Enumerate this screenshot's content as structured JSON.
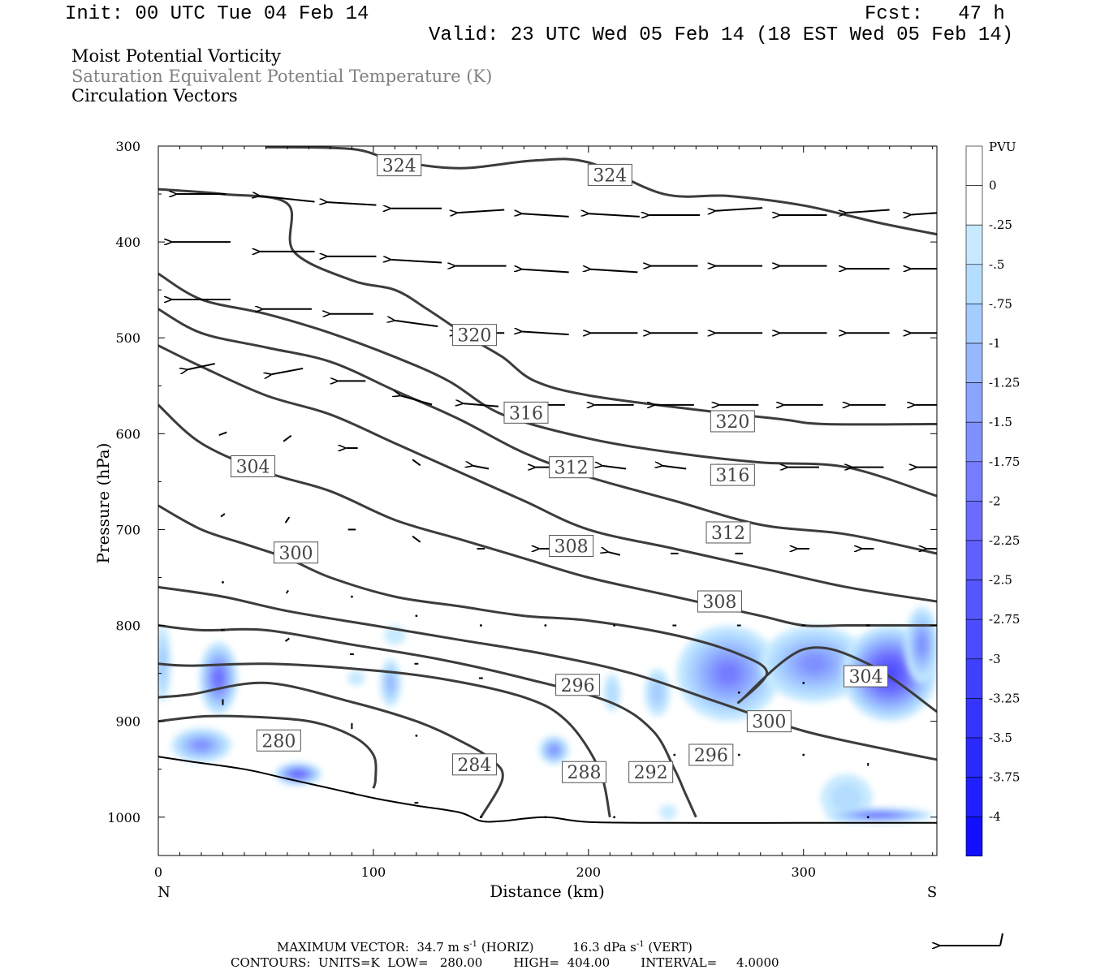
{
  "header": {
    "init": "Init: 00 UTC Tue 04 Feb 14",
    "fcst": "Fcst:   47 h",
    "valid": "Valid: 23 UTC Wed 05 Feb 14 (18 EST Wed 05 Feb 14)"
  },
  "titles": {
    "line1": "Moist Potential Vorticity",
    "line2": "Saturation Equivalent Potential Temperature (K)",
    "line3": "Circulation Vectors"
  },
  "colors": {
    "contour": "#3c3c3c",
    "terrain": "#000000",
    "pv_fill": [
      "#c8eaff",
      "#b4ddff",
      "#a5ccff",
      "#97b8ff",
      "#8aa4ff",
      "#7f90ff",
      "#757cff",
      "#6b6bff",
      "#6060ff",
      "#5656ff",
      "#4b4bff",
      "#4040ff",
      "#3535ff",
      "#2a2aff",
      "#1f1fff",
      "#1010ff"
    ]
  },
  "chart_data": {
    "type": "contour",
    "xlabel": "Distance (km)",
    "ylabel": "Pressure (hPa)",
    "xlim": [
      0,
      362
    ],
    "ylim": [
      1040,
      300
    ],
    "x_ticks": [
      0,
      100,
      200,
      300
    ],
    "y_ticks": [
      300,
      400,
      500,
      600,
      700,
      800,
      900,
      1000
    ],
    "x_end_labels": {
      "left": "N",
      "right": "S"
    },
    "colorbar": {
      "title": "PVU",
      "labels": [
        "0",
        "-.25",
        "-.5",
        "-.75",
        "-1",
        "-1.25",
        "-1.5",
        "-1.75",
        "-2",
        "-2.25",
        "-2.5",
        "-2.75",
        "-3",
        "-3.25",
        "-3.5",
        "-3.75",
        "-4"
      ]
    },
    "terrain": {
      "x": [
        0,
        15,
        40,
        60,
        80,
        100,
        120,
        140,
        150,
        160,
        180,
        200,
        240,
        300,
        362
      ],
      "p": [
        937,
        942,
        950,
        960,
        970,
        980,
        988,
        995,
        1004,
        1004,
        1000,
        1005,
        1006,
        1006,
        1006
      ]
    },
    "theta_e_contours": [
      {
        "value": 324,
        "x": [
          50,
          90,
          110,
          140,
          175,
          200,
          235,
          265,
          300,
          335,
          362
        ],
        "p": [
          301,
          303,
          315,
          323,
          315,
          317,
          350,
          352,
          362,
          380,
          392
        ]
      },
      {
        "value": 320,
        "x": [
          0,
          30,
          60,
          63,
          90,
          110,
          125,
          145,
          160,
          175,
          200,
          250,
          290,
          310,
          362
        ],
        "p": [
          345,
          350,
          360,
          410,
          440,
          450,
          470,
          500,
          520,
          545,
          560,
          575,
          585,
          590,
          590
        ]
      },
      {
        "value": 316,
        "x": [
          0,
          20,
          50,
          80,
          110,
          135,
          160,
          200,
          240,
          280,
          320,
          362
        ],
        "p": [
          433,
          460,
          475,
          495,
          520,
          545,
          580,
          605,
          620,
          630,
          635,
          665
        ]
      },
      {
        "value": 312,
        "x": [
          0,
          20,
          50,
          80,
          110,
          140,
          170,
          200,
          240,
          280,
          320,
          362
        ],
        "p": [
          470,
          495,
          510,
          525,
          555,
          585,
          620,
          645,
          670,
          695,
          705,
          725
        ]
      },
      {
        "value": 308,
        "x": [
          0,
          20,
          50,
          80,
          110,
          140,
          170,
          200,
          240,
          280,
          320,
          362
        ],
        "p": [
          508,
          530,
          560,
          580,
          610,
          640,
          670,
          700,
          720,
          740,
          760,
          775
        ]
      },
      {
        "value": 304,
        "x": [
          0,
          20,
          50,
          80,
          110,
          140,
          170,
          200,
          240,
          280,
          300,
          320,
          345,
          362
        ],
        "p": [
          570,
          610,
          640,
          660,
          690,
          710,
          730,
          750,
          770,
          790,
          800,
          800,
          800,
          800
        ]
      },
      {
        "value": 300,
        "x": [
          0,
          20,
          40,
          60,
          80,
          110,
          140,
          170,
          200,
          240,
          270,
          283,
          270,
          300,
          330,
          362
        ],
        "p": [
          675,
          700,
          715,
          730,
          750,
          770,
          780,
          790,
          795,
          810,
          830,
          850,
          880,
          825,
          840,
          890
        ]
      },
      {
        "value": 296,
        "x": [
          0,
          30,
          60,
          100,
          140,
          180,
          220,
          260,
          300,
          340,
          362
        ],
        "p": [
          760,
          770,
          785,
          800,
          815,
          830,
          850,
          880,
          910,
          930,
          940
        ]
      },
      {
        "value": 292,
        "x": [
          0,
          20,
          50,
          90,
          130,
          170,
          210,
          230,
          240,
          245,
          250
        ],
        "p": [
          800,
          805,
          805,
          820,
          835,
          855,
          880,
          910,
          950,
          975,
          1000
        ]
      },
      {
        "value": 288,
        "x": [
          0,
          15,
          50,
          90,
          130,
          170,
          190,
          205,
          210
        ],
        "p": [
          840,
          842,
          840,
          845,
          855,
          875,
          900,
          950,
          1000
        ]
      },
      {
        "value": 284,
        "x": [
          0,
          15,
          50,
          90,
          120,
          140,
          155,
          160,
          150
        ],
        "p": [
          875,
          872,
          860,
          880,
          900,
          920,
          940,
          960,
          1000
        ]
      },
      {
        "value": 280,
        "x": [
          0,
          20,
          40,
          70,
          90,
          100,
          101,
          100
        ],
        "p": [
          900,
          895,
          895,
          900,
          915,
          935,
          960,
          970
        ]
      }
    ],
    "contour_labels": [
      {
        "text": "324",
        "x": 112,
        "p": 320
      },
      {
        "text": "324",
        "x": 210,
        "p": 330
      },
      {
        "text": "320",
        "x": 147,
        "p": 497
      },
      {
        "text": "316",
        "x": 171,
        "p": 578
      },
      {
        "text": "320",
        "x": 267,
        "p": 587
      },
      {
        "text": "312",
        "x": 192,
        "p": 635
      },
      {
        "text": "316",
        "x": 267,
        "p": 643
      },
      {
        "text": "304",
        "x": 44,
        "p": 634
      },
      {
        "text": "312",
        "x": 265,
        "p": 703
      },
      {
        "text": "308",
        "x": 192,
        "p": 717
      },
      {
        "text": "300",
        "x": 64,
        "p": 724
      },
      {
        "text": "308",
        "x": 261,
        "p": 775
      },
      {
        "text": "304",
        "x": 329,
        "p": 853
      },
      {
        "text": "296",
        "x": 195,
        "p": 862
      },
      {
        "text": "300",
        "x": 284,
        "p": 900
      },
      {
        "text": "280",
        "x": 56,
        "p": 920
      },
      {
        "text": "296",
        "x": 257,
        "p": 935
      },
      {
        "text": "284",
        "x": 147,
        "p": 945
      },
      {
        "text": "288",
        "x": 198,
        "p": 953
      },
      {
        "text": "292",
        "x": 229,
        "p": 953
      }
    ],
    "pv_blobs": [
      {
        "x": 28,
        "p": 855,
        "rx": 9,
        "rp": 38,
        "level": 8
      },
      {
        "x": 20,
        "p": 925,
        "rx": 14,
        "rp": 18,
        "level": 6
      },
      {
        "x": 65,
        "p": 955,
        "rx": 11,
        "rp": 12,
        "level": 9
      },
      {
        "x": 2,
        "p": 840,
        "rx": 4,
        "rp": 40,
        "level": 3
      },
      {
        "x": 108,
        "p": 860,
        "rx": 5,
        "rp": 25,
        "level": 4
      },
      {
        "x": 92,
        "p": 855,
        "rx": 4,
        "rp": 8,
        "level": 1
      },
      {
        "x": 110,
        "p": 810,
        "rx": 5,
        "rp": 10,
        "level": 1
      },
      {
        "x": 184,
        "p": 930,
        "rx": 7,
        "rp": 15,
        "level": 6
      },
      {
        "x": 211,
        "p": 870,
        "rx": 4,
        "rp": 20,
        "level": 2
      },
      {
        "x": 232,
        "p": 870,
        "rx": 6,
        "rp": 25,
        "level": 3
      },
      {
        "x": 265,
        "p": 850,
        "rx": 24,
        "rp": 50,
        "level": 7
      },
      {
        "x": 305,
        "p": 840,
        "rx": 25,
        "rp": 40,
        "level": 6
      },
      {
        "x": 340,
        "p": 850,
        "rx": 22,
        "rp": 50,
        "level": 11
      },
      {
        "x": 355,
        "p": 820,
        "rx": 8,
        "rp": 40,
        "level": 6
      },
      {
        "x": 320,
        "p": 980,
        "rx": 12,
        "rp": 25,
        "level": 2
      },
      {
        "x": 335,
        "p": 998,
        "rx": 25,
        "rp": 8,
        "level": 8
      },
      {
        "x": 237,
        "p": 995,
        "rx": 4,
        "rp": 8,
        "level": 1
      }
    ],
    "vectors": [
      {
        "x": 20,
        "p": 350,
        "u": -25,
        "w": 0
      },
      {
        "x": 60,
        "p": 355,
        "u": -28,
        "w": 2
      },
      {
        "x": 90,
        "p": 360,
        "u": -25,
        "w": 1
      },
      {
        "x": 120,
        "p": 365,
        "u": -26,
        "w": 0
      },
      {
        "x": 150,
        "p": 368,
        "u": -24,
        "w": -1
      },
      {
        "x": 180,
        "p": 372,
        "u": -24,
        "w": 1
      },
      {
        "x": 212,
        "p": 372,
        "u": -26,
        "w": 1
      },
      {
        "x": 240,
        "p": 372,
        "u": -26,
        "w": 0
      },
      {
        "x": 270,
        "p": 366,
        "u": -24,
        "w": -1
      },
      {
        "x": 300,
        "p": 372,
        "u": -24,
        "w": 0
      },
      {
        "x": 330,
        "p": 368,
        "u": -22,
        "w": -1
      },
      {
        "x": 360,
        "p": 370,
        "u": -22,
        "w": -1
      },
      {
        "x": 20,
        "p": 400,
        "u": -30,
        "w": 0
      },
      {
        "x": 60,
        "p": 410,
        "u": -28,
        "w": 0
      },
      {
        "x": 90,
        "p": 415,
        "u": -25,
        "w": 0
      },
      {
        "x": 120,
        "p": 420,
        "u": -26,
        "w": 1
      },
      {
        "x": 150,
        "p": 425,
        "u": -26,
        "w": 0
      },
      {
        "x": 180,
        "p": 430,
        "u": -24,
        "w": 1
      },
      {
        "x": 212,
        "p": 430,
        "u": -24,
        "w": 1
      },
      {
        "x": 240,
        "p": 425,
        "u": -24,
        "w": 0
      },
      {
        "x": 270,
        "p": 425,
        "u": -24,
        "w": 0
      },
      {
        "x": 300,
        "p": 425,
        "u": -24,
        "w": 0
      },
      {
        "x": 330,
        "p": 428,
        "u": -22,
        "w": 0
      },
      {
        "x": 360,
        "p": 428,
        "u": -22,
        "w": 0
      },
      {
        "x": 20,
        "p": 460,
        "u": -30,
        "w": 0
      },
      {
        "x": 60,
        "p": 470,
        "u": -25,
        "w": 0
      },
      {
        "x": 90,
        "p": 475,
        "u": -22,
        "w": 0
      },
      {
        "x": 120,
        "p": 485,
        "u": -22,
        "w": 2
      },
      {
        "x": 150,
        "p": 495,
        "u": -24,
        "w": 0
      },
      {
        "x": 180,
        "p": 495,
        "u": -24,
        "w": 1
      },
      {
        "x": 212,
        "p": 495,
        "u": -24,
        "w": 0
      },
      {
        "x": 240,
        "p": 495,
        "u": -24,
        "w": 0
      },
      {
        "x": 270,
        "p": 495,
        "u": -24,
        "w": 0
      },
      {
        "x": 300,
        "p": 495,
        "u": -24,
        "w": 0
      },
      {
        "x": 330,
        "p": 495,
        "u": -22,
        "w": 0
      },
      {
        "x": 360,
        "p": 495,
        "u": -22,
        "w": 0
      },
      {
        "x": 20,
        "p": 530,
        "u": -14,
        "w": -2
      },
      {
        "x": 60,
        "p": 535,
        "u": -16,
        "w": -2
      },
      {
        "x": 90,
        "p": 545,
        "u": -14,
        "w": 0
      },
      {
        "x": 120,
        "p": 565,
        "u": -16,
        "w": 3
      },
      {
        "x": 150,
        "p": 570,
        "u": -18,
        "w": 1
      },
      {
        "x": 180,
        "p": 570,
        "u": -20,
        "w": 0
      },
      {
        "x": 212,
        "p": 570,
        "u": -20,
        "w": 0
      },
      {
        "x": 240,
        "p": 570,
        "u": -20,
        "w": 0
      },
      {
        "x": 270,
        "p": 570,
        "u": -20,
        "w": 0
      },
      {
        "x": 300,
        "p": 570,
        "u": -20,
        "w": 0
      },
      {
        "x": 330,
        "p": 570,
        "u": -18,
        "w": 0
      },
      {
        "x": 360,
        "p": 570,
        "u": -18,
        "w": 0
      },
      {
        "x": 30,
        "p": 600,
        "u": -4,
        "w": -1
      },
      {
        "x": 60,
        "p": 605,
        "u": -4,
        "w": -2
      },
      {
        "x": 90,
        "p": 615,
        "u": -6,
        "w": 0
      },
      {
        "x": 120,
        "p": 630,
        "u": -4,
        "w": 2
      },
      {
        "x": 150,
        "p": 635,
        "u": -8,
        "w": 1
      },
      {
        "x": 180,
        "p": 635,
        "u": -10,
        "w": 0
      },
      {
        "x": 212,
        "p": 635,
        "u": -12,
        "w": 1
      },
      {
        "x": 240,
        "p": 635,
        "u": -12,
        "w": 1
      },
      {
        "x": 270,
        "p": 635,
        "u": -14,
        "w": 0
      },
      {
        "x": 300,
        "p": 635,
        "u": -16,
        "w": 0
      },
      {
        "x": 330,
        "p": 635,
        "u": -16,
        "w": 0
      },
      {
        "x": 360,
        "p": 635,
        "u": -16,
        "w": 0
      },
      {
        "x": 30,
        "p": 685,
        "u": -2,
        "w": -1
      },
      {
        "x": 60,
        "p": 690,
        "u": -2,
        "w": -2
      },
      {
        "x": 90,
        "p": 700,
        "u": -4,
        "w": 0
      },
      {
        "x": 120,
        "p": 710,
        "u": -4,
        "w": 2
      },
      {
        "x": 150,
        "p": 720,
        "u": -4,
        "w": 0
      },
      {
        "x": 180,
        "p": 720,
        "u": -6,
        "w": 0
      },
      {
        "x": 212,
        "p": 725,
        "u": -6,
        "w": 1
      },
      {
        "x": 240,
        "p": 725,
        "u": -4,
        "w": 0
      },
      {
        "x": 270,
        "p": 725,
        "u": -4,
        "w": 0
      },
      {
        "x": 300,
        "p": 720,
        "u": -6,
        "w": 0
      },
      {
        "x": 330,
        "p": 720,
        "u": -6,
        "w": 0
      },
      {
        "x": 360,
        "p": 720,
        "u": -6,
        "w": 0
      },
      {
        "x": 30,
        "p": 755,
        "u": -1,
        "w": 0
      },
      {
        "x": 60,
        "p": 765,
        "u": -1,
        "w": -1
      },
      {
        "x": 90,
        "p": 770,
        "u": -1,
        "w": 0
      },
      {
        "x": 120,
        "p": 790,
        "u": 0,
        "w": 0
      },
      {
        "x": 30,
        "p": 805,
        "u": -2,
        "w": 0
      },
      {
        "x": 60,
        "p": 815,
        "u": -2,
        "w": -1
      },
      {
        "x": 90,
        "p": 830,
        "u": -2,
        "w": 0
      },
      {
        "x": 120,
        "p": 840,
        "u": -2,
        "w": 0
      },
      {
        "x": 150,
        "p": 800,
        "u": -1,
        "w": 0
      },
      {
        "x": 180,
        "p": 800,
        "u": -1,
        "w": 0
      },
      {
        "x": 212,
        "p": 800,
        "u": -1,
        "w": 0
      },
      {
        "x": 240,
        "p": 800,
        "u": -2,
        "w": 0
      },
      {
        "x": 270,
        "p": 800,
        "u": -2,
        "w": 0
      },
      {
        "x": 300,
        "p": 800,
        "u": -2,
        "w": 0
      },
      {
        "x": 330,
        "p": 800,
        "u": -2,
        "w": 0
      },
      {
        "x": 30,
        "p": 880,
        "u": 0,
        "w": 2
      },
      {
        "x": 150,
        "p": 855,
        "u": -2,
        "w": 0
      },
      {
        "x": 270,
        "p": 870,
        "u": -1,
        "w": 0
      },
      {
        "x": 300,
        "p": 860,
        "u": -1,
        "w": 0
      },
      {
        "x": 330,
        "p": 860,
        "u": -1,
        "w": 0
      },
      {
        "x": 90,
        "p": 905,
        "u": 0,
        "w": 2
      },
      {
        "x": 120,
        "p": 915,
        "u": -1,
        "w": 0
      },
      {
        "x": 150,
        "p": 935,
        "u": -1,
        "w": 0
      },
      {
        "x": 240,
        "p": 935,
        "u": 0,
        "w": 0
      },
      {
        "x": 270,
        "p": 935,
        "u": 0,
        "w": 0
      },
      {
        "x": 300,
        "p": 935,
        "u": 0,
        "w": 0
      },
      {
        "x": 330,
        "p": 945,
        "u": 0,
        "w": -1
      },
      {
        "x": 90,
        "p": 975,
        "u": -2,
        "w": 0
      },
      {
        "x": 120,
        "p": 985,
        "u": -2,
        "w": 0
      },
      {
        "x": 150,
        "p": 1000,
        "u": -1,
        "w": 0
      },
      {
        "x": 180,
        "p": 1000,
        "u": -1,
        "w": 0
      },
      {
        "x": 212,
        "p": 1000,
        "u": -1,
        "w": 0
      },
      {
        "x": 330,
        "p": 1000,
        "u": -1,
        "w": 0
      }
    ]
  },
  "legend": {
    "max_vector_label": "MAXIMUM VECTOR:",
    "horiz_value": "34.7",
    "horiz_units": "m s",
    "horiz_exp": "-1",
    "horiz_tag": "(HORIZ)",
    "vert_value": "16.3",
    "vert_units": "dPa s",
    "vert_exp": "-1",
    "vert_tag": "(VERT)",
    "contours_line": "CONTOURS:  UNITS=K  LOW=   280.00        HIGH=  404.00        INTERVAL=     4.0000"
  }
}
